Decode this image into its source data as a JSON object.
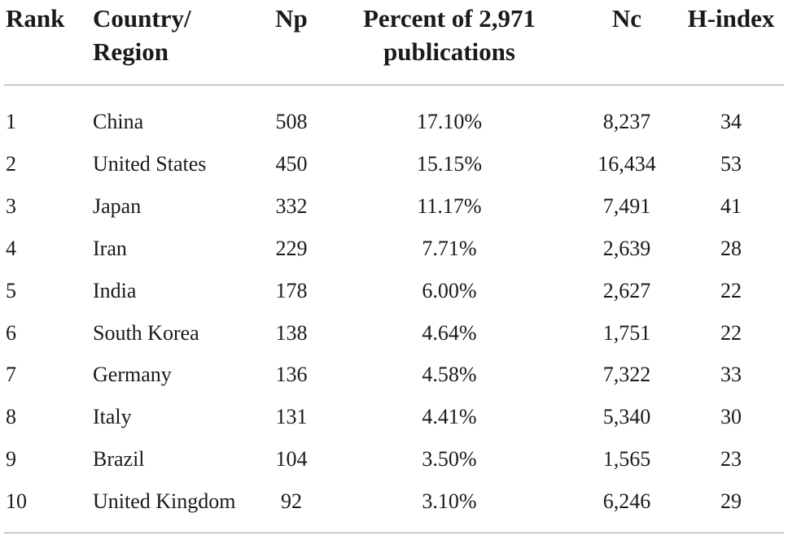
{
  "headers": {
    "rank": "Rank",
    "country_line1": "Country/",
    "country_line2": "Region",
    "np": "Np",
    "percent_line1": "Percent of 2,971",
    "percent_line2": "publications",
    "nc": "Nc",
    "hindex": "H-index"
  },
  "rows": [
    {
      "rank": "1",
      "country": "China",
      "np": "508",
      "percent": "17.10%",
      "nc": "8,237",
      "hindex": "34"
    },
    {
      "rank": "2",
      "country": "United States",
      "np": "450",
      "percent": "15.15%",
      "nc": "16,434",
      "hindex": "53"
    },
    {
      "rank": "3",
      "country": "Japan",
      "np": "332",
      "percent": "11.17%",
      "nc": "7,491",
      "hindex": "41"
    },
    {
      "rank": "4",
      "country": "Iran",
      "np": "229",
      "percent": "7.71%",
      "nc": "2,639",
      "hindex": "28"
    },
    {
      "rank": "5",
      "country": "India",
      "np": "178",
      "percent": "6.00%",
      "nc": "2,627",
      "hindex": "22"
    },
    {
      "rank": "6",
      "country": "South Korea",
      "np": "138",
      "percent": "4.64%",
      "nc": "1,751",
      "hindex": "22"
    },
    {
      "rank": "7",
      "country": "Germany",
      "np": "136",
      "percent": "4.58%",
      "nc": "7,322",
      "hindex": "33"
    },
    {
      "rank": "8",
      "country": "Italy",
      "np": "131",
      "percent": "4.41%",
      "nc": "5,340",
      "hindex": "30"
    },
    {
      "rank": "9",
      "country": "Brazil",
      "np": "104",
      "percent": "3.50%",
      "nc": "1,565",
      "hindex": "23"
    },
    {
      "rank": "10",
      "country": "United Kingdom",
      "np": "92",
      "percent": "3.10%",
      "nc": "6,246",
      "hindex": "29"
    }
  ]
}
